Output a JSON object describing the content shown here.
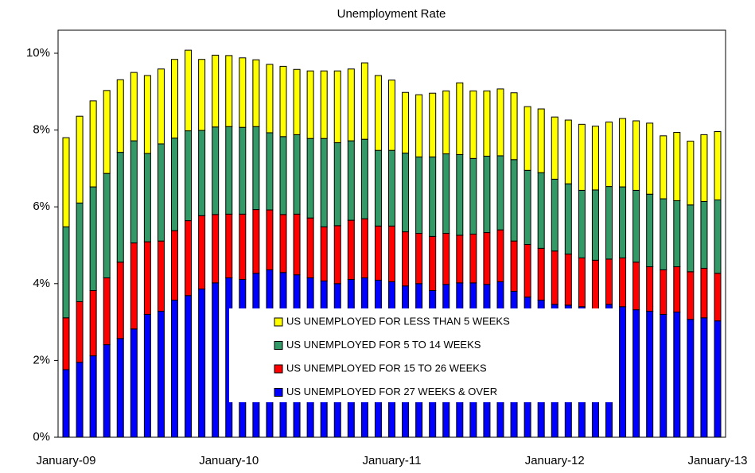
{
  "chart_data": {
    "type": "stacked_bar",
    "title": "Unemployment Rate",
    "categories": [
      "January-09",
      null,
      null,
      null,
      null,
      null,
      null,
      null,
      null,
      null,
      null,
      null,
      "January-10",
      null,
      null,
      null,
      null,
      null,
      null,
      null,
      null,
      null,
      null,
      null,
      "January-11",
      null,
      null,
      null,
      null,
      null,
      null,
      null,
      null,
      null,
      null,
      null,
      "January-12",
      null,
      null,
      null,
      null,
      null,
      null,
      null,
      null,
      null,
      null,
      null,
      "January-13"
    ],
    "series": [
      {
        "name": "US UNEMPLOYED FOR 27 WEEKS & OVER",
        "color": "#0000ff",
        "values": [
          1.76,
          1.95,
          2.12,
          2.41,
          2.57,
          2.82,
          3.2,
          3.28,
          3.57,
          3.69,
          3.86,
          4.02,
          4.15,
          4.11,
          4.27,
          4.36,
          4.29,
          4.23,
          4.15,
          4.07,
          4.0,
          4.11,
          4.15,
          4.09,
          4.05,
          3.94,
          4.0,
          3.82,
          3.98,
          4.02,
          4.02,
          3.98,
          4.05,
          3.8,
          3.65,
          3.57,
          3.46,
          3.44,
          3.4,
          3.32,
          3.46,
          3.4,
          3.32,
          3.28,
          3.2,
          3.26,
          3.07,
          3.11,
          3.03
        ]
      },
      {
        "name": "US UNEMPLOYED FOR 15 TO 26 WEEKS",
        "color": "#ff0000",
        "values": [
          1.35,
          1.58,
          1.7,
          1.74,
          1.99,
          2.24,
          1.89,
          1.83,
          1.81,
          1.95,
          1.91,
          1.78,
          1.66,
          1.7,
          1.66,
          1.56,
          1.51,
          1.58,
          1.56,
          1.41,
          1.51,
          1.54,
          1.54,
          1.41,
          1.45,
          1.41,
          1.31,
          1.41,
          1.33,
          1.24,
          1.27,
          1.35,
          1.35,
          1.31,
          1.37,
          1.35,
          1.39,
          1.33,
          1.27,
          1.29,
          1.18,
          1.27,
          1.24,
          1.16,
          1.16,
          1.18,
          1.24,
          1.29,
          1.24
        ]
      },
      {
        "name": "US UNEMPLOYED FOR 5 TO 14 WEEKS",
        "color": "#339966",
        "values": [
          2.37,
          2.57,
          2.7,
          2.72,
          2.86,
          2.66,
          2.3,
          2.53,
          2.41,
          2.34,
          2.22,
          2.28,
          2.28,
          2.26,
          2.16,
          2.01,
          2.03,
          2.07,
          2.07,
          2.3,
          2.16,
          2.07,
          2.07,
          1.97,
          1.97,
          2.05,
          1.99,
          2.07,
          2.07,
          2.1,
          1.97,
          1.99,
          1.93,
          2.12,
          1.93,
          1.97,
          1.87,
          1.83,
          1.76,
          1.83,
          1.89,
          1.85,
          1.87,
          1.89,
          1.85,
          1.72,
          1.74,
          1.74,
          1.91
        ]
      },
      {
        "name": "US UNEMPLOYED FOR LESS THAN 5 WEEKS",
        "color": "#ffff00",
        "values": [
          2.32,
          2.26,
          2.24,
          2.16,
          1.89,
          1.78,
          2.03,
          1.95,
          2.05,
          2.1,
          1.85,
          1.87,
          1.85,
          1.81,
          1.74,
          1.78,
          1.83,
          1.7,
          1.76,
          1.76,
          1.87,
          1.87,
          1.99,
          1.95,
          1.83,
          1.58,
          1.62,
          1.66,
          1.64,
          1.87,
          1.76,
          1.7,
          1.74,
          1.74,
          1.66,
          1.66,
          1.62,
          1.66,
          1.72,
          1.66,
          1.68,
          1.78,
          1.81,
          1.85,
          1.64,
          1.78,
          1.66,
          1.74,
          1.78
        ]
      }
    ],
    "ylim": [
      0,
      10.6
    ],
    "yticks": [
      {
        "value": 0,
        "label": "0%"
      },
      {
        "value": 2,
        "label": "2%"
      },
      {
        "value": 4,
        "label": "4%"
      },
      {
        "value": 6,
        "label": "6%"
      },
      {
        "value": 8,
        "label": "8%"
      },
      {
        "value": 10,
        "label": "10%"
      }
    ],
    "legend_position": "lower center"
  }
}
